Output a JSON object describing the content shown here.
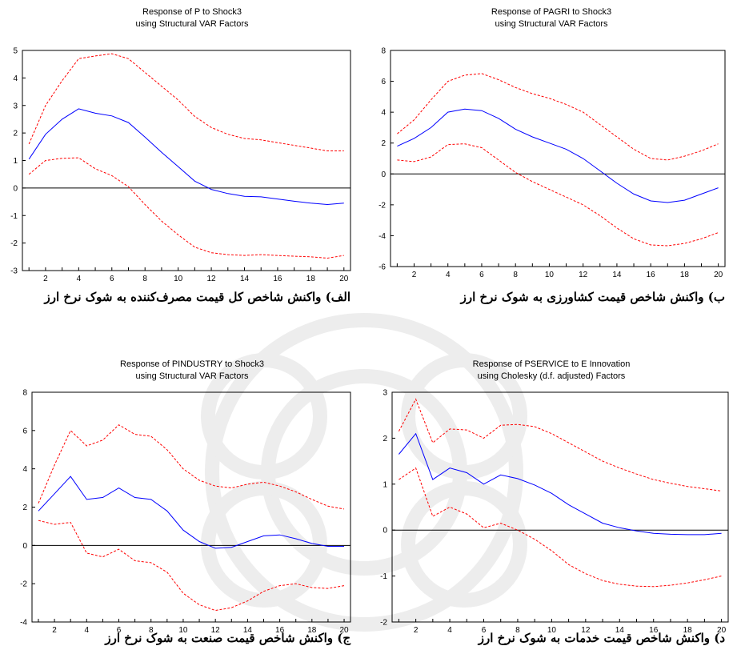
{
  "chart_data": [
    {
      "type": "line",
      "title": "Response of P to Shock3",
      "subtitle": "using Structural VAR Factors",
      "caption": "الف) واکنش شاخص کل قیمت مصرف‌کننده به شوک نرخ ارز",
      "x": [
        1,
        2,
        3,
        4,
        5,
        6,
        7,
        8,
        9,
        10,
        11,
        12,
        13,
        14,
        15,
        16,
        17,
        18,
        19,
        20
      ],
      "xticks": [
        2,
        4,
        6,
        8,
        10,
        12,
        14,
        16,
        18,
        20
      ],
      "ylim": [
        -3,
        5
      ],
      "yticks": [
        -3,
        -2,
        -1,
        0,
        1,
        2,
        3,
        4,
        5
      ],
      "series": [
        {
          "role": "response",
          "color": "#0000ff",
          "dashed": false,
          "values": [
            1.05,
            1.95,
            2.5,
            2.88,
            2.72,
            2.62,
            2.38,
            1.85,
            1.3,
            0.78,
            0.25,
            -0.05,
            -0.2,
            -0.3,
            -0.32,
            -0.4,
            -0.48,
            -0.55,
            -0.6,
            -0.55
          ]
        },
        {
          "role": "upper",
          "color": "#ff0000",
          "dashed": true,
          "values": [
            1.6,
            3.0,
            3.9,
            4.7,
            4.8,
            4.88,
            4.7,
            4.2,
            3.7,
            3.2,
            2.6,
            2.2,
            1.95,
            1.8,
            1.75,
            1.65,
            1.55,
            1.45,
            1.35,
            1.35
          ]
        },
        {
          "role": "lower",
          "color": "#ff0000",
          "dashed": true,
          "values": [
            0.5,
            1.0,
            1.08,
            1.1,
            0.7,
            0.45,
            0.05,
            -0.6,
            -1.2,
            -1.7,
            -2.15,
            -2.35,
            -2.42,
            -2.45,
            -2.42,
            -2.45,
            -2.48,
            -2.5,
            -2.55,
            -2.45
          ]
        }
      ]
    },
    {
      "type": "line",
      "title": "Response of PAGRI to Shock3",
      "subtitle": "using Structural VAR Factors",
      "caption": "ب) واکنش شاخص قیمت کشاورزی به شوک نرخ ارز",
      "x": [
        1,
        2,
        3,
        4,
        5,
        6,
        7,
        8,
        9,
        10,
        11,
        12,
        13,
        14,
        15,
        16,
        17,
        18,
        19,
        20
      ],
      "xticks": [
        2,
        4,
        6,
        8,
        10,
        12,
        14,
        16,
        18,
        20
      ],
      "ylim": [
        -6,
        8
      ],
      "yticks": [
        -6,
        -4,
        -2,
        0,
        2,
        4,
        6,
        8
      ],
      "series": [
        {
          "role": "response",
          "color": "#0000ff",
          "dashed": false,
          "values": [
            1.8,
            2.3,
            3.0,
            4.0,
            4.2,
            4.1,
            3.6,
            2.9,
            2.4,
            2.0,
            1.6,
            1.0,
            0.2,
            -0.6,
            -1.3,
            -1.75,
            -1.85,
            -1.7,
            -1.3,
            -0.9
          ]
        },
        {
          "role": "upper",
          "color": "#ff0000",
          "dashed": true,
          "values": [
            2.6,
            3.5,
            4.8,
            6.0,
            6.4,
            6.5,
            6.1,
            5.6,
            5.2,
            4.9,
            4.5,
            4.0,
            3.2,
            2.4,
            1.6,
            1.0,
            0.9,
            1.15,
            1.5,
            1.95
          ]
        },
        {
          "role": "lower",
          "color": "#ff0000",
          "dashed": true,
          "values": [
            0.9,
            0.8,
            1.1,
            1.9,
            1.95,
            1.7,
            0.9,
            0.1,
            -0.5,
            -1.0,
            -1.5,
            -2.0,
            -2.7,
            -3.5,
            -4.2,
            -4.6,
            -4.65,
            -4.5,
            -4.2,
            -3.8
          ]
        }
      ]
    },
    {
      "type": "line",
      "title": "Response of PINDUSTRY to Shock3",
      "subtitle": "using Structural VAR Factors",
      "caption": "ج) واکنش شاخص قیمت صنعت به شوک نرخ ارز",
      "x": [
        1,
        2,
        3,
        4,
        5,
        6,
        7,
        8,
        9,
        10,
        11,
        12,
        13,
        14,
        15,
        16,
        17,
        18,
        19,
        20
      ],
      "xticks": [
        2,
        4,
        6,
        8,
        10,
        12,
        14,
        16,
        18,
        20
      ],
      "ylim": [
        -4,
        8
      ],
      "yticks": [
        -4,
        -2,
        0,
        2,
        4,
        6,
        8
      ],
      "series": [
        {
          "role": "response",
          "color": "#0000ff",
          "dashed": false,
          "values": [
            1.8,
            2.7,
            3.6,
            2.4,
            2.5,
            3.0,
            2.5,
            2.4,
            1.8,
            0.8,
            0.2,
            -0.15,
            -0.1,
            0.2,
            0.5,
            0.55,
            0.35,
            0.1,
            -0.05,
            -0.05
          ]
        },
        {
          "role": "upper",
          "color": "#ff0000",
          "dashed": true,
          "values": [
            2.2,
            4.2,
            6.0,
            5.2,
            5.5,
            6.3,
            5.8,
            5.7,
            5.0,
            4.0,
            3.4,
            3.1,
            3.0,
            3.2,
            3.3,
            3.1,
            2.8,
            2.4,
            2.05,
            1.9
          ]
        },
        {
          "role": "lower",
          "color": "#ff0000",
          "dashed": true,
          "values": [
            1.3,
            1.1,
            1.2,
            -0.4,
            -0.6,
            -0.2,
            -0.8,
            -0.9,
            -1.4,
            -2.5,
            -3.1,
            -3.4,
            -3.25,
            -2.9,
            -2.4,
            -2.1,
            -2.0,
            -2.2,
            -2.25,
            -2.1
          ]
        }
      ]
    },
    {
      "type": "line",
      "title": "Response of PSERVICE to E Innovation",
      "subtitle": "using Cholesky (d.f. adjusted) Factors",
      "caption": "د) واکنش شاخص قیمت خدمات به شوک نرخ ارز",
      "x": [
        1,
        2,
        3,
        4,
        5,
        6,
        7,
        8,
        9,
        10,
        11,
        12,
        13,
        14,
        15,
        16,
        17,
        18,
        19,
        20
      ],
      "xticks": [
        2,
        4,
        6,
        8,
        10,
        12,
        14,
        16,
        18,
        20
      ],
      "ylim": [
        -2,
        3
      ],
      "yticks": [
        -2,
        -1,
        0,
        1,
        2,
        3
      ],
      "series": [
        {
          "role": "response",
          "color": "#0000ff",
          "dashed": false,
          "values": [
            1.65,
            2.1,
            1.1,
            1.35,
            1.25,
            1.0,
            1.2,
            1.12,
            0.98,
            0.8,
            0.55,
            0.35,
            0.15,
            0.05,
            -0.02,
            -0.07,
            -0.09,
            -0.1,
            -0.1,
            -0.07
          ]
        },
        {
          "role": "upper",
          "color": "#ff0000",
          "dashed": true,
          "values": [
            2.15,
            2.85,
            1.9,
            2.2,
            2.18,
            2.0,
            2.28,
            2.3,
            2.25,
            2.1,
            1.9,
            1.7,
            1.5,
            1.35,
            1.22,
            1.1,
            1.02,
            0.95,
            0.9,
            0.85
          ]
        },
        {
          "role": "lower",
          "color": "#ff0000",
          "dashed": true,
          "values": [
            1.1,
            1.35,
            0.3,
            0.5,
            0.35,
            0.05,
            0.15,
            0.0,
            -0.2,
            -0.45,
            -0.75,
            -0.95,
            -1.1,
            -1.18,
            -1.22,
            -1.23,
            -1.2,
            -1.15,
            -1.08,
            -1.0
          ]
        }
      ]
    }
  ]
}
